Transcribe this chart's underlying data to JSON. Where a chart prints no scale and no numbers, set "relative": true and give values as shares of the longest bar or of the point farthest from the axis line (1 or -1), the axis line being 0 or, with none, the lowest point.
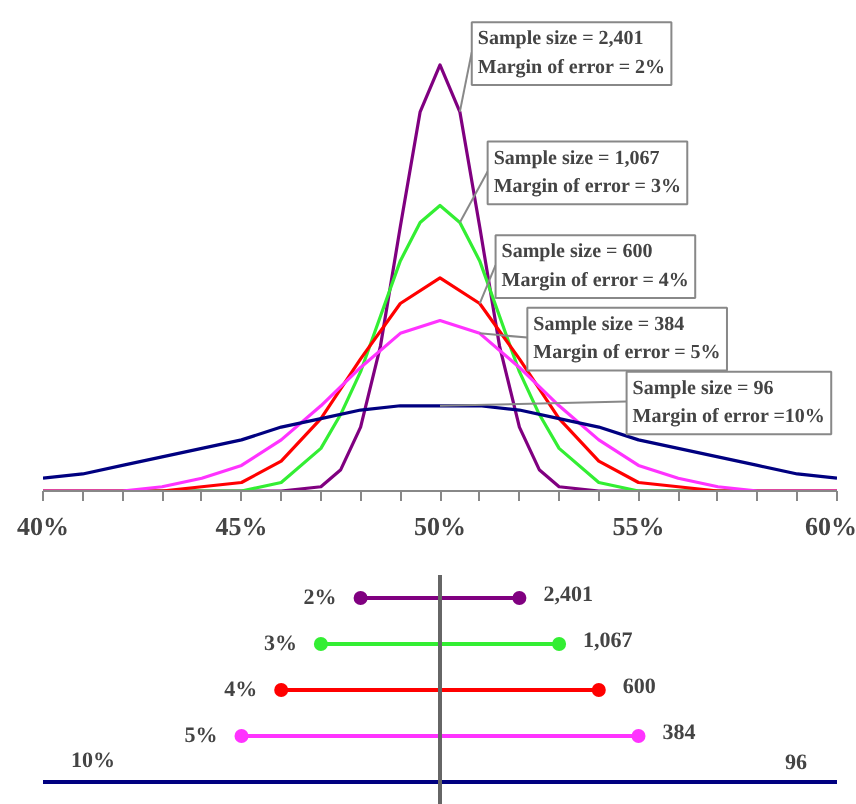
{
  "chart_data": [
    {
      "type": "line",
      "relative": true,
      "xlim": [
        40,
        60
      ],
      "tick_labels": "x",
      "xticks": [
        {
          "value": 40,
          "label": "40%"
        },
        {
          "value": 41,
          "label": null
        },
        {
          "value": 42,
          "label": null
        },
        {
          "value": 43,
          "label": null
        },
        {
          "value": 44,
          "label": null
        },
        {
          "value": 45,
          "label": "45%"
        },
        {
          "value": 46,
          "label": null
        },
        {
          "value": 47,
          "label": null
        },
        {
          "value": 48,
          "label": null
        },
        {
          "value": 49,
          "label": null
        },
        {
          "value": 50,
          "label": "50%"
        },
        {
          "value": 51,
          "label": null
        },
        {
          "value": 52,
          "label": null
        },
        {
          "value": 53,
          "label": null
        },
        {
          "value": 54,
          "label": null
        },
        {
          "value": 55,
          "label": "55%"
        },
        {
          "value": 56,
          "label": null
        },
        {
          "value": 57,
          "label": null
        },
        {
          "value": 58,
          "label": null
        },
        {
          "value": 59,
          "label": null
        },
        {
          "value": 60,
          "label": "60%"
        }
      ],
      "series": [
        {
          "name": "Sample size = 2,401\nMargin of error = 2%",
          "color": "#800080",
          "x": [
            40,
            46,
            47,
            47.5,
            48,
            48.5,
            49,
            49.5,
            50,
            50.5,
            51,
            51.5,
            52,
            52.5,
            53,
            54,
            60
          ],
          "values": [
            0,
            0,
            0.01,
            0.05,
            0.15,
            0.34,
            0.62,
            0.89,
            1,
            0.89,
            0.62,
            0.34,
            0.15,
            0.05,
            0.01,
            0,
            0
          ]
        },
        {
          "name": "Sample size = 1,067\nMargin of error = 3%",
          "color": "#33ee33",
          "x": [
            40,
            45,
            46,
            47,
            47.5,
            48,
            48.5,
            49,
            49.5,
            50,
            50.5,
            51,
            51.5,
            52,
            52.5,
            53,
            54,
            55,
            60
          ],
          "values": [
            0,
            0,
            0.02,
            0.1,
            0.18,
            0.28,
            0.41,
            0.54,
            0.63,
            0.67,
            0.63,
            0.54,
            0.41,
            0.28,
            0.18,
            0.1,
            0.02,
            0,
            0
          ]
        },
        {
          "name": "Sample size = 600\nMargin of error = 4%",
          "color": "#ff0000",
          "x": [
            40,
            43,
            44,
            45,
            46,
            47,
            48,
            49,
            50,
            51,
            52,
            53,
            54,
            55,
            56,
            57,
            60
          ],
          "values": [
            0,
            0,
            0.01,
            0.02,
            0.07,
            0.17,
            0.31,
            0.44,
            0.5,
            0.44,
            0.31,
            0.17,
            0.07,
            0.02,
            0.01,
            0,
            0
          ]
        },
        {
          "name": "Sample size = 384\nMargin of error = 5%",
          "color": "#ff33ff",
          "x": [
            40,
            42,
            43,
            44,
            45,
            46,
            47,
            48,
            49,
            50,
            51,
            52,
            53,
            54,
            55,
            56,
            57,
            58,
            60
          ],
          "values": [
            0,
            0,
            0.01,
            0.03,
            0.06,
            0.12,
            0.2,
            0.29,
            0.37,
            0.4,
            0.37,
            0.29,
            0.2,
            0.12,
            0.06,
            0.03,
            0.01,
            0,
            0
          ]
        },
        {
          "name": "Sample size = 96\nMargin of error =10%",
          "color": "#000080",
          "x": [
            40,
            41,
            42,
            43,
            44,
            45,
            46,
            47,
            48,
            49,
            50,
            51,
            52,
            53,
            54,
            55,
            56,
            57,
            58,
            59,
            60
          ],
          "values": [
            0.03,
            0.04,
            0.06,
            0.08,
            0.1,
            0.12,
            0.15,
            0.17,
            0.19,
            0.2,
            0.2,
            0.2,
            0.19,
            0.17,
            0.15,
            0.12,
            0.1,
            0.08,
            0.06,
            0.04,
            0.03
          ]
        }
      ]
    },
    {
      "type": "bar",
      "orientation": "horizontal",
      "xlim": [
        40,
        60
      ],
      "tick_labels": false,
      "marker": "circle",
      "categories": [
        null,
        null,
        null,
        null,
        null
      ],
      "annotations": [
        {
          "text": "2%",
          "x": 48
        },
        {
          "text": "3%",
          "x": 47
        },
        {
          "text": "4%",
          "x": 46
        },
        {
          "text": "5%",
          "x": 45
        },
        "10%",
        {
          "text": "2,401",
          "x": 52
        },
        {
          "text": "1,067",
          "x": 53
        },
        {
          "text": "600",
          "x": 54
        },
        {
          "text": "384",
          "x": 55
        },
        "96"
      ],
      "base": [
        48,
        47,
        46,
        45,
        40
      ],
      "values": [
        4,
        6,
        8,
        10,
        20
      ],
      "colors": [
        "#800080",
        "#33ee33",
        "#ff0000",
        "#ff33ff",
        "#000080"
      ],
      "ref_lines": [
        {
          "axis": "x",
          "value": 50,
          "color": "#666666"
        }
      ]
    }
  ]
}
